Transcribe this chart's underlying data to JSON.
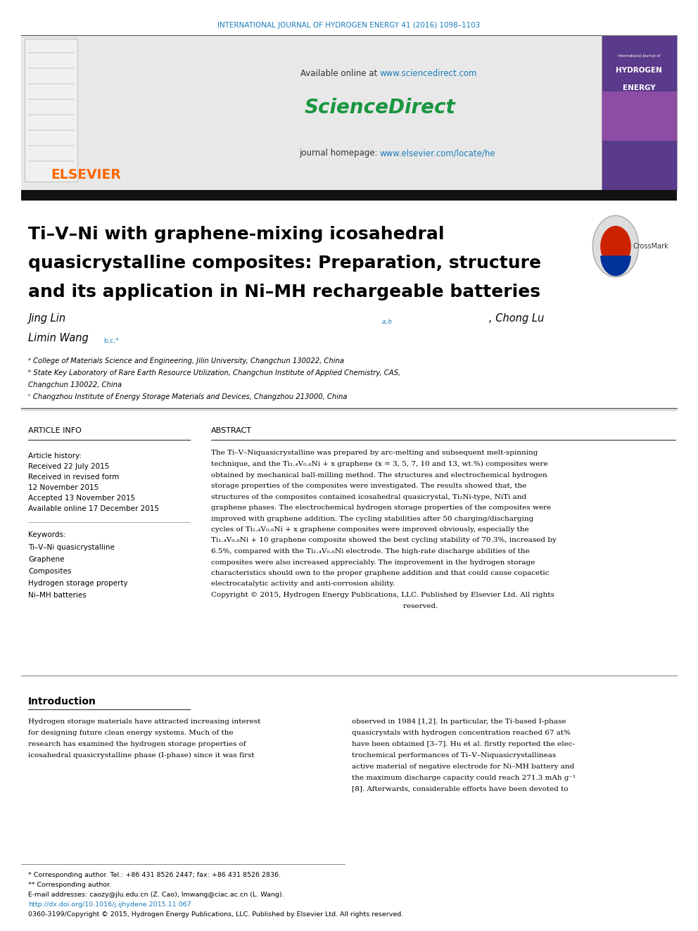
{
  "page_width": 9.92,
  "page_height": 13.23,
  "bg_color": "#ffffff",
  "header_bg_color": "#e8e8e8",
  "journal_text": "INTERNATIONAL JOURNAL OF HYDROGEN ENERGY 41 (2016) 1098–1103",
  "journal_text_color": "#1a7dba",
  "article_title_line1": "Ti–V–Ni with graphene-mixing icosahedral",
  "article_title_line2": "quasicrystalline composites: Preparation, structure",
  "article_title_line3": "and its application in Ni–MH rechargeable batteries",
  "affil_a": "ᵃ College of Materials Science and Engineering, Jilin University, Changchun 130022, China",
  "affil_b1": "ᵇ State Key Laboratory of Rare Earth Resource Utilization, Changchun Institute of Applied Chemistry, CAS,",
  "affil_b2": "Changchun 130022, China",
  "affil_c": "ᶜ Changzhou Institute of Energy Storage Materials and Devices, Changzhou 213000, China",
  "article_info_header": "ARTICLE INFO",
  "abstract_header": "ABSTRACT",
  "article_history": "Article history:",
  "received1": "Received 22 July 2015",
  "received2": "Received in revised form",
  "received2b": "12 November 2015",
  "accepted": "Accepted 13 November 2015",
  "available": "Available online 17 December 2015",
  "keywords_header": "Keywords:",
  "kw1": "Ti–V–Ni quasicrystalline",
  "kw2": "Graphene",
  "kw3": "Composites",
  "kw4": "Hydrogen storage property",
  "kw5": "Ni–MH batteries",
  "intro_header": "Introduction",
  "footnote1": "* Corresponding author. Tel.: +86 431 8526 2447; fax: +86 431 8526 2836.",
  "footnote2": "** Corresponding author.",
  "footnote3": "E-mail addresses: caozy@jlu.edu.cn (Z. Cao), lmwang@ciac.ac.cn (L. Wang).",
  "footnote4": "http://dx.doi.org/10.1016/j.ijhydene.2015.11.067",
  "footnote5": "0360-3199/Copyright © 2015, Hydrogen Energy Publications, LLC. Published by Elsevier Ltd. All rights reserved.",
  "doi_color": "#1a7dba",
  "elsevier_color": "#ff6600",
  "link_color": "#1a7dba",
  "green_color": "#1a9640"
}
